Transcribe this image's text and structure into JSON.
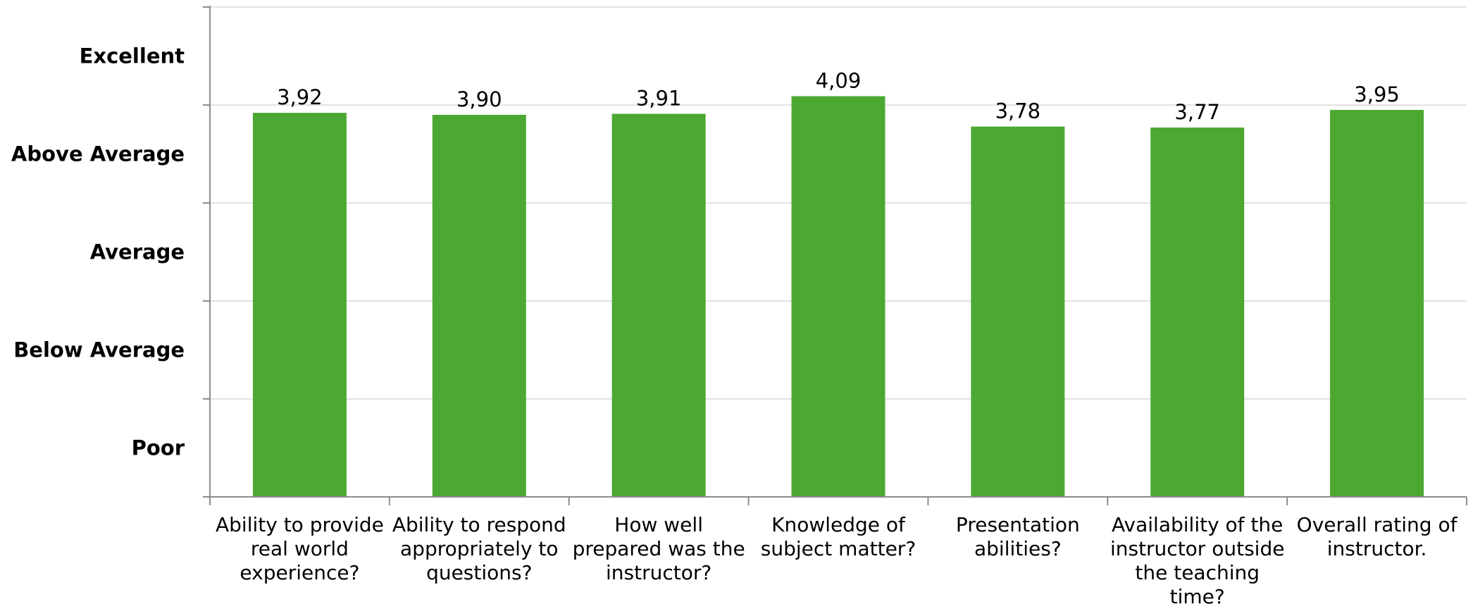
{
  "chart_data": {
    "type": "bar",
    "categories": [
      "Ability to provide real world experience?",
      "Ability to respond appropriately to questions?",
      "How well prepared was the instructor?",
      "Knowledge of subject matter?",
      "Presentation abilities?",
      "Availability of the instructor outside the teaching time?",
      "Overall rating of instructor."
    ],
    "category_lines": [
      [
        "Ability to provide",
        "real world",
        "experience?"
      ],
      [
        "Ability to respond",
        "appropriately to",
        "questions?"
      ],
      [
        "How well",
        "prepared was the",
        "instructor?"
      ],
      [
        "Knowledge of",
        "subject matter?"
      ],
      [
        "Presentation",
        "abilities?"
      ],
      [
        "Availability of the",
        "instructor outside",
        "the teaching",
        "time?"
      ],
      [
        "Overall rating of",
        "instructor."
      ]
    ],
    "values": [
      3.92,
      3.9,
      3.91,
      4.09,
      3.78,
      3.77,
      3.95
    ],
    "data_labels": [
      "3,92",
      "3,90",
      "3,91",
      "4,09",
      "3,78",
      "3,77",
      "3,95"
    ],
    "ylim": [
      0,
      5
    ],
    "y_tick_labels": [
      {
        "label": "Poor",
        "position": 0.5
      },
      {
        "label": "Below Average",
        "position": 1.5
      },
      {
        "label": "Average",
        "position": 2.5
      },
      {
        "label": "Above Average",
        "position": 3.5
      },
      {
        "label": "Excellent",
        "position": 4.5
      }
    ],
    "gridlines": [
      1,
      2,
      3,
      4,
      5
    ],
    "grid": true,
    "title": "",
    "xlabel": "",
    "ylabel": "",
    "colors": {
      "bar": "#4ca832"
    }
  }
}
